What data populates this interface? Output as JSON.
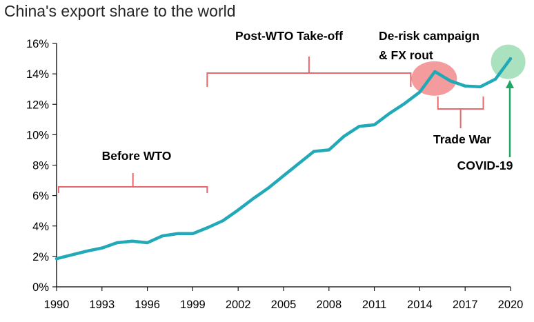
{
  "chart_data": {
    "type": "line",
    "title": "China's export share to the world",
    "xlabel": "",
    "ylabel": "",
    "xlim": [
      1990,
      2020
    ],
    "ylim": [
      0,
      16
    ],
    "x_ticks": [
      1990,
      1993,
      1996,
      1999,
      2002,
      2005,
      2008,
      2011,
      2014,
      2017,
      2020
    ],
    "x_tick_labels": [
      "1990",
      "1993",
      "1996",
      "1999",
      "2002",
      "2005",
      "2008",
      "2011",
      "2014",
      "2017",
      "2020"
    ],
    "y_ticks": [
      0,
      2,
      4,
      6,
      8,
      10,
      12,
      14,
      16
    ],
    "y_tick_labels": [
      "0%",
      "2%",
      "4%",
      "6%",
      "8%",
      "10%",
      "12%",
      "14%",
      "16%"
    ],
    "grid": false,
    "series": [
      {
        "color": "#21A9B8",
        "x": [
          1990,
          1991,
          1992,
          1993,
          1994,
          1995,
          1996,
          1997,
          1998,
          1999,
          2000,
          2001,
          2002,
          2003,
          2004,
          2005,
          2006,
          2007,
          2008,
          2009,
          2010,
          2011,
          2012,
          2013,
          2014,
          2015,
          2016,
          2017,
          2018,
          2019,
          2020
        ],
        "y": [
          1.85,
          2.1,
          2.35,
          2.55,
          2.9,
          3.0,
          2.9,
          3.35,
          3.5,
          3.5,
          3.9,
          4.35,
          5.05,
          5.8,
          6.5,
          7.3,
          8.1,
          8.9,
          9.0,
          9.9,
          10.55,
          10.65,
          11.4,
          12.05,
          12.8,
          14.15,
          13.55,
          13.2,
          13.15,
          13.65,
          15.0
        ]
      }
    ],
    "annotations": [
      {
        "text": "Before WTO",
        "period": [
          1990,
          2000
        ],
        "color": "#E8676A"
      },
      {
        "text": "Post-WTO Take-off",
        "period": [
          2000,
          2013.5
        ],
        "color": "#E8676A"
      },
      {
        "text": "De-risk campaign",
        "text2": "& FX rout",
        "highlight_x": 2015,
        "highlight_y": 14.15,
        "color": "#F28B8C"
      },
      {
        "text": "Trade War",
        "period": [
          2015.2,
          2018.2
        ],
        "color": "#E8676A"
      },
      {
        "text": "COVID-19",
        "highlight_x": 2019.8,
        "highlight_y": 14.7,
        "color": "#9BDDB4",
        "arrow_color": "#1FA862"
      }
    ]
  }
}
